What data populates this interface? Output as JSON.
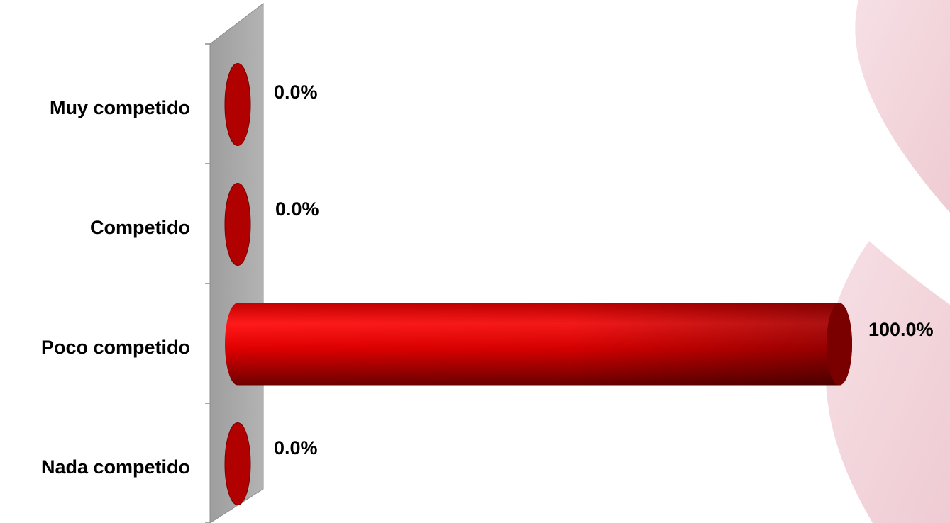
{
  "chart_data": {
    "type": "bar",
    "orientation": "horizontal",
    "categories": [
      "Muy competido",
      "Competido",
      "Poco competido",
      "Nada competido"
    ],
    "values": [
      0.0,
      0.0,
      100.0,
      0.0
    ],
    "data_labels": [
      "0.0%",
      "0.0%",
      "100.0%",
      "0.0%"
    ],
    "xlim": [
      0,
      100
    ],
    "unit": "%",
    "legend": "none",
    "grid": false,
    "style": "3d-cylinder"
  },
  "colors": {
    "bar_main": "#e00000",
    "bar_dark": "#8a0000",
    "bar_end": "#7a0000",
    "wall": "#a9a9a9",
    "wall_edge": "#8c8c8c",
    "decor": "#f2d5dc"
  }
}
